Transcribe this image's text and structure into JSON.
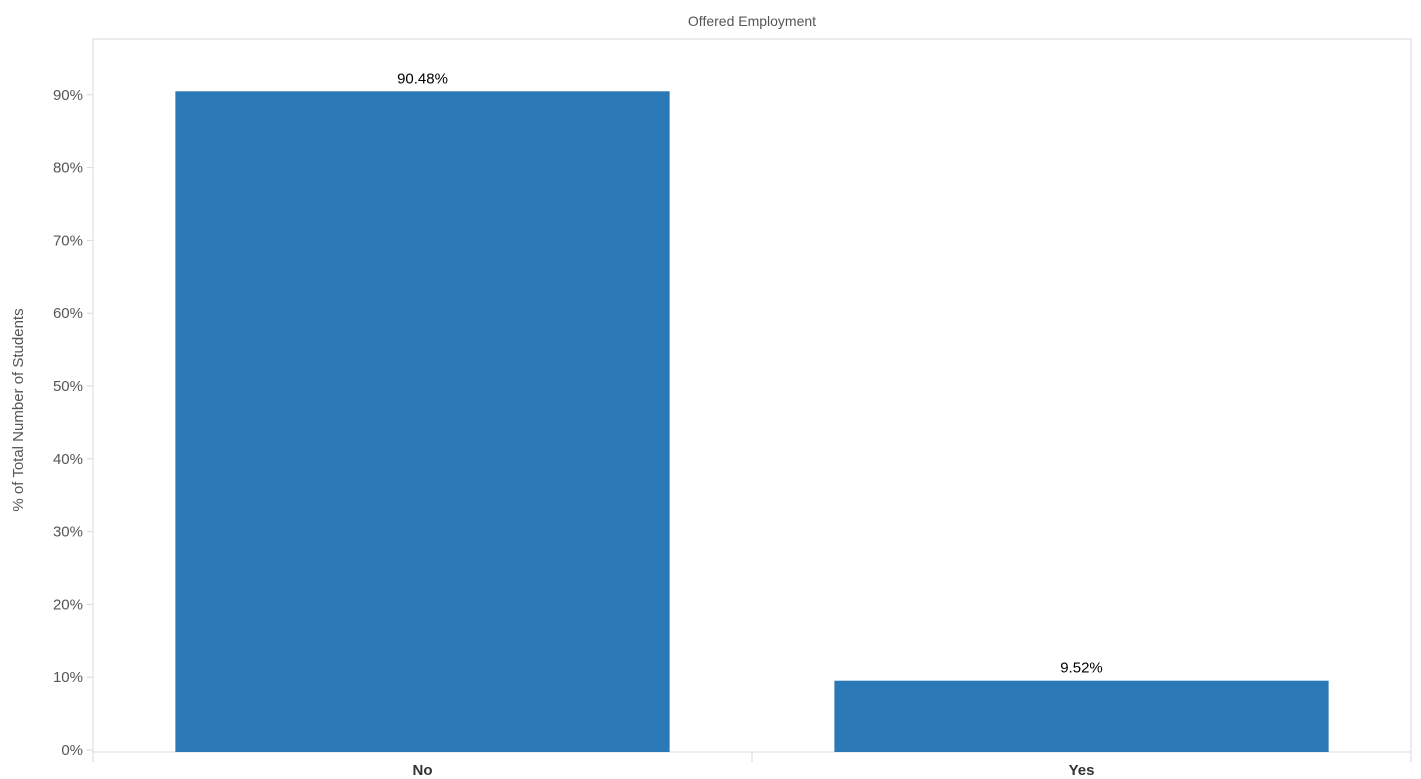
{
  "chart_data": {
    "type": "bar",
    "title": "Offered Employment",
    "ylabel": "% of Total Number of Students",
    "xlabel": "",
    "categories": [
      "No",
      "Yes"
    ],
    "values": [
      90.48,
      9.52
    ],
    "data_labels": [
      "90.48%",
      "9.52%"
    ],
    "ylim": [
      0,
      90
    ],
    "yticks": [
      0,
      10,
      20,
      30,
      40,
      50,
      60,
      70,
      80,
      90
    ],
    "ytick_labels": [
      "0%",
      "10%",
      "20%",
      "30%",
      "40%",
      "50%",
      "60%",
      "70%",
      "80%",
      "90%"
    ],
    "bar_color": "#2b78b6",
    "grid": false,
    "legend": "none"
  }
}
